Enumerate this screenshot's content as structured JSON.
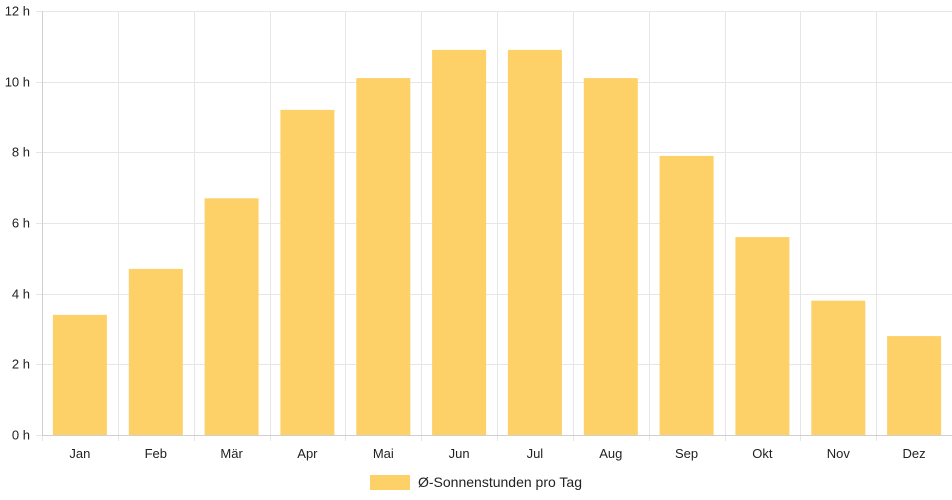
{
  "chart_data": {
    "type": "bar",
    "categories": [
      "Jan",
      "Feb",
      "Mär",
      "Apr",
      "Mai",
      "Jun",
      "Jul",
      "Aug",
      "Sep",
      "Okt",
      "Nov",
      "Dez"
    ],
    "series": [
      {
        "name": "Ø-Sonnenstunden pro Tag",
        "values": [
          3.4,
          4.7,
          6.7,
          9.2,
          10.1,
          10.9,
          10.9,
          10.1,
          7.9,
          5.6,
          3.8,
          2.8
        ],
        "color": "#fdd068"
      }
    ],
    "ylim": [
      0,
      12
    ],
    "yticks": [
      "0 h",
      "2 h",
      "4 h",
      "6 h",
      "8 h",
      "10 h",
      "12 h"
    ],
    "grid": true,
    "legend_position": "bottom-center"
  }
}
